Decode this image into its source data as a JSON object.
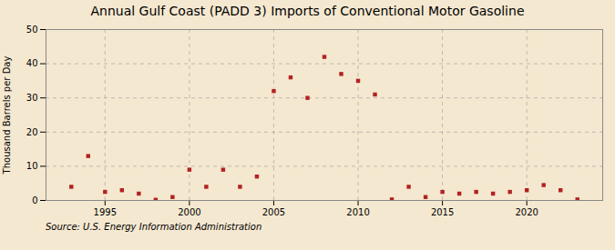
{
  "chart_data": {
    "type": "scatter",
    "title": "Annual Gulf Coast (PADD 3) Imports of Conventional Motor Gasoline",
    "ylabel": "Thousand Barrels per Day",
    "caption": "Source: U.S. Energy Information Administration",
    "x": [
      1993,
      1994,
      1995,
      1996,
      1997,
      1998,
      1999,
      2000,
      2001,
      2002,
      2003,
      2004,
      2005,
      2006,
      2007,
      2008,
      2009,
      2010,
      2011,
      2012,
      2013,
      2014,
      2015,
      2016,
      2017,
      2018,
      2019,
      2020,
      2021,
      2022,
      2023
    ],
    "values": [
      4.0,
      13.0,
      2.5,
      3.0,
      2.0,
      0.2,
      1.0,
      9.0,
      4.0,
      9.0,
      4.0,
      7.0,
      32.0,
      36.0,
      30.0,
      42.0,
      37.0,
      35.0,
      31.0,
      0.3,
      4.0,
      1.0,
      2.5,
      2.0,
      2.5,
      2.0,
      2.5,
      3.0,
      4.5,
      3.0,
      0.3
    ],
    "color": "#b22222",
    "marker": "square",
    "xlim": [
      1991.5,
      2024.5
    ],
    "xticks": [
      1995,
      2000,
      2005,
      2010,
      2015,
      2020
    ],
    "ylim": [
      0,
      50
    ],
    "yticks": [
      0,
      10,
      20,
      30,
      40,
      50
    ],
    "grid": true
  }
}
